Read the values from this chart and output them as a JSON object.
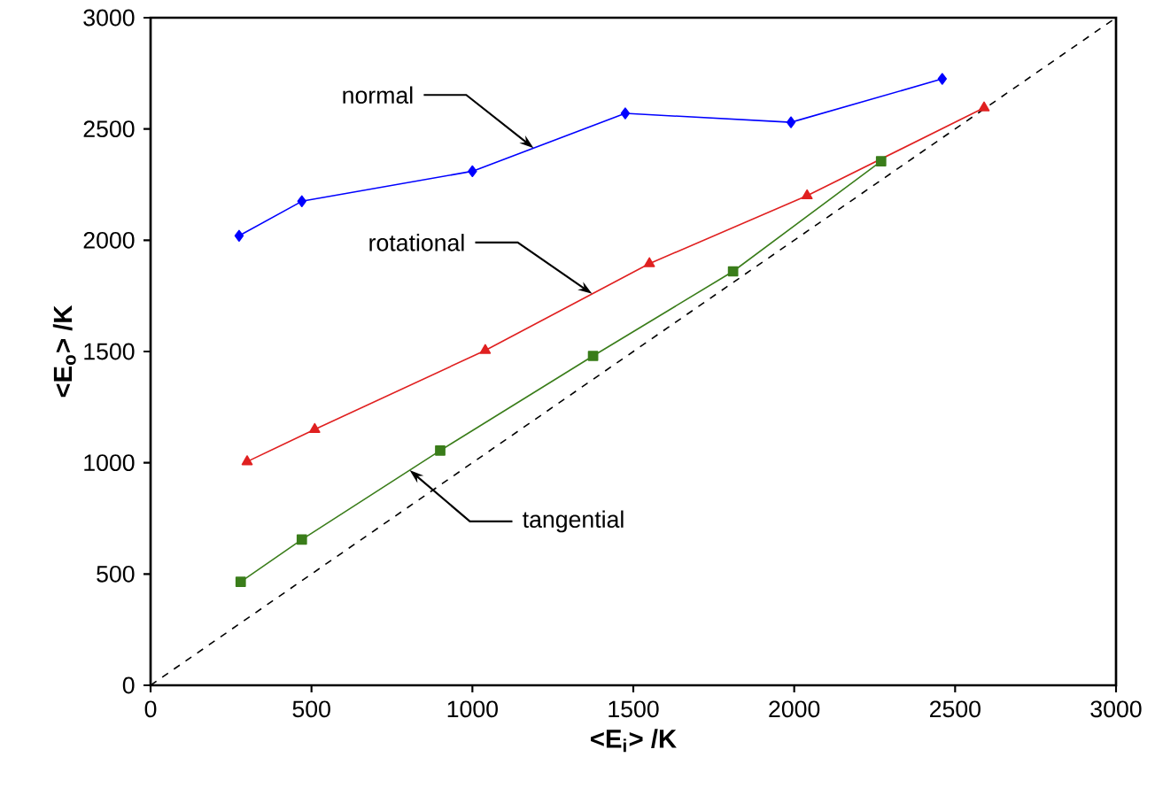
{
  "chart_data": {
    "type": "line",
    "xlabel": "<E$_{i}$> /K",
    "ylabel": "<E$_{o}$> /K",
    "xlim": [
      0,
      3000
    ],
    "ylim": [
      0,
      3000
    ],
    "xticks": [
      0,
      500,
      1000,
      1500,
      2000,
      2500,
      3000
    ],
    "yticks": [
      0,
      500,
      1000,
      1500,
      2000,
      2500,
      3000
    ],
    "grid": false,
    "series": [
      {
        "color": "#0000ff",
        "marker": "diamond",
        "line_style": "solid",
        "x": [
          275,
          470,
          1000,
          1475,
          1990,
          2460
        ],
        "values": [
          2020,
          2175,
          2310,
          2570,
          2530,
          2725
        ]
      },
      {
        "color": "#e02020",
        "marker": "triangle",
        "line_style": "solid",
        "x": [
          300,
          510,
          1040,
          1550,
          2040,
          2590
        ],
        "values": [
          1005,
          1150,
          1505,
          1895,
          2200,
          2595
        ]
      },
      {
        "color": "#3a7d1a",
        "marker": "square",
        "line_style": "solid",
        "x": [
          280,
          470,
          900,
          1375,
          1810,
          2270
        ],
        "values": [
          465,
          655,
          1055,
          1480,
          1860,
          2355
        ]
      },
      {
        "color": "#000000",
        "marker": "none",
        "line_style": "dashed",
        "x": [
          0,
          3000
        ],
        "values": [
          0,
          3000
        ]
      }
    ],
    "annotations": [
      {
        "text": "normal",
        "x": 1190,
        "y": 2414
      },
      {
        "text": "rotational",
        "x": 1372,
        "y": 1759
      },
      {
        "text": "tangential",
        "x": 805,
        "y": 967
      }
    ]
  }
}
